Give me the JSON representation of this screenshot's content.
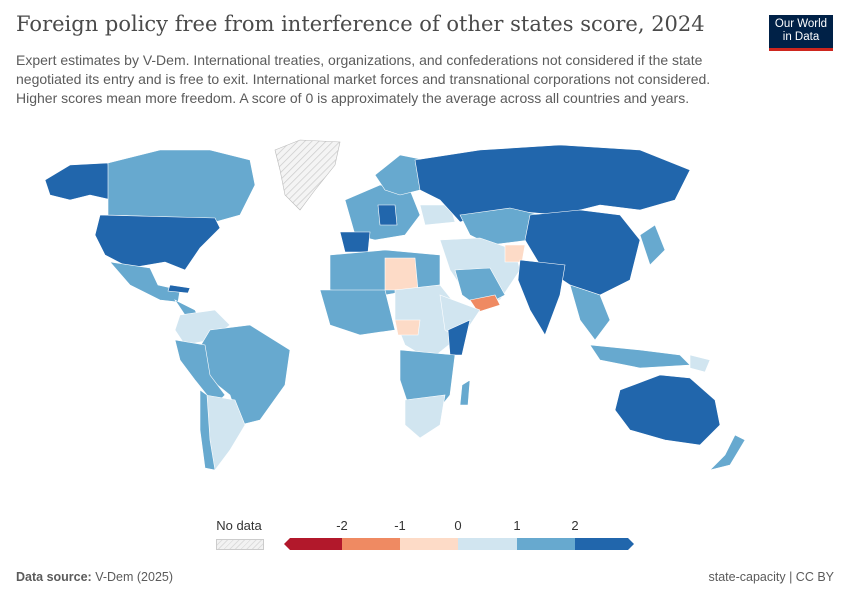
{
  "title": "Foreign policy free from interference of other states score, 2024",
  "subtitle": "Expert estimates by V-Dem. International treaties, organizations, and confederations not considered if the state negotiated its entry and is free to exit. International market forces and transnational corporations not considered. Higher scores mean more freedom. A score of 0 is approximately the average across all countries and years.",
  "logo": {
    "line1": "Our World",
    "line2": "in Data"
  },
  "legend": {
    "no_data": "No data",
    "ticks": [
      "-2",
      "-1",
      "0",
      "1",
      "2"
    ],
    "colors": [
      "#b2182b",
      "#ef8a62",
      "#fddbc7",
      "#d1e5f0",
      "#67a9cf",
      "#2166ac"
    ],
    "no_data_color": "#e6e6e6"
  },
  "footer": {
    "source_label": "Data source:",
    "source": "V-Dem (2025)",
    "license": "state-capacity | CC BY"
  }
}
